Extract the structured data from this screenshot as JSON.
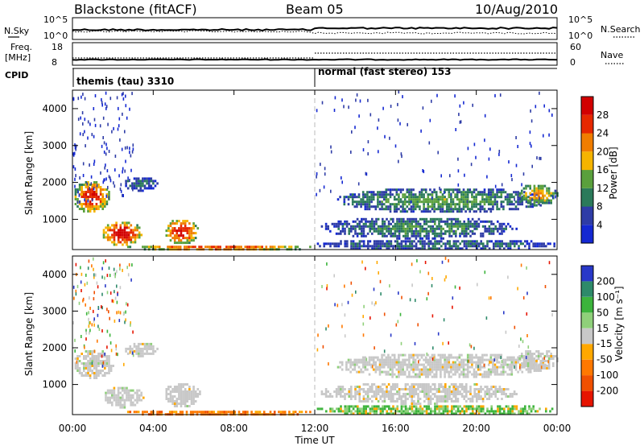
{
  "header": {
    "station": "Blackstone (fitACF)",
    "beam": "Beam 05",
    "date": "10/Aug/2010"
  },
  "top_panels": {
    "nsky_label": "N.Sky",
    "nsky_ticks": [
      "10^5",
      "10^0"
    ],
    "nsearch_label": "N.Search",
    "nsearch_ticks": [
      "10^5",
      "10^0"
    ],
    "freq_label": "Freq.",
    "freq_unit": "[MHz]",
    "freq_ticks": [
      "18",
      "8"
    ],
    "nave_label": "Nave",
    "nave_ticks": [
      "60",
      "0"
    ],
    "cpid_label": "CPID"
  },
  "cpid_modes": [
    {
      "label": "themis (tau) 3310",
      "start_hour": 0
    },
    {
      "label": "normal (fast stereo) 153",
      "start_hour": 12
    }
  ],
  "x_axis": {
    "label": "Time UT",
    "ticks": [
      "00:00",
      "04:00",
      "08:00",
      "12:00",
      "16:00",
      "20:00",
      "00:00"
    ],
    "range_hours": [
      0,
      24
    ]
  },
  "power_panel": {
    "ylabel": "Slant Range [km]",
    "yticks": [
      "1000",
      "2000",
      "3000",
      "4000"
    ],
    "ylim": [
      180,
      4500
    ],
    "colorbar_label": "Power [dB]",
    "colorbar_ticks": [
      "28",
      "24",
      "20",
      "16",
      "12",
      "8",
      "4"
    ],
    "colors": [
      "#1428d2",
      "#2e3ca6",
      "#2b7a5a",
      "#5aa03c",
      "#f5b400",
      "#f07d00",
      "#e62800",
      "#d20000"
    ]
  },
  "velocity_panel": {
    "ylabel": "Slant Range [km]",
    "yticks": [
      "1000",
      "2000",
      "3000",
      "4000"
    ],
    "ylim": [
      180,
      4500
    ],
    "colorbar_label": "Velocity [m s⁻¹]",
    "colorbar_ticks": [
      "200",
      "100",
      "50",
      "15",
      "-15",
      "-50",
      "-100",
      "-200"
    ],
    "colors": [
      "#2838c8",
      "#2e8a6a",
      "#3cb43c",
      "#8fd07a",
      "#c8c8c8",
      "#ffa800",
      "#ff7800",
      "#f05000",
      "#e61400"
    ]
  },
  "chart_data": {
    "type": "heatmap",
    "title": "Blackstone (fitACF)",
    "xlabel": "Time UT",
    "ylabel": "Slant Range [km]",
    "xlim_hours": [
      0,
      24
    ],
    "ylim_km": [
      180,
      4500
    ],
    "power_features": [
      {
        "t0": 0.0,
        "t1": 1.8,
        "r0": 1200,
        "r1": 2100,
        "level": 0.75
      },
      {
        "t0": 2.5,
        "t1": 4.2,
        "r0": 1800,
        "r1": 2200,
        "level": 0.25
      },
      {
        "t0": 1.4,
        "t1": 3.4,
        "r0": 300,
        "r1": 1000,
        "level": 0.85
      },
      {
        "t0": 4.5,
        "t1": 6.2,
        "r0": 350,
        "r1": 1050,
        "level": 0.8
      },
      {
        "t0": 2.5,
        "t1": 12.0,
        "r0": 180,
        "r1": 350,
        "level": 0.7
      },
      {
        "t0": 12.2,
        "t1": 22.0,
        "r0": 500,
        "r1": 1100,
        "level": 0.3
      },
      {
        "t0": 13.0,
        "t1": 23.5,
        "r0": 1200,
        "r1": 1900,
        "level": 0.35
      },
      {
        "t0": 12.0,
        "t1": 24.0,
        "r0": 180,
        "r1": 500,
        "level": 0.25
      },
      {
        "t0": 22.0,
        "t1": 24.0,
        "r0": 1400,
        "r1": 2000,
        "level": 0.55
      }
    ],
    "velocity_features": [
      {
        "t0": 0.0,
        "t1": 2.0,
        "r0": 1200,
        "r1": 2000,
        "class": "ground"
      },
      {
        "t0": 2.5,
        "t1": 4.2,
        "r0": 1800,
        "r1": 2200,
        "class": "ground"
      },
      {
        "t0": 1.5,
        "t1": 3.5,
        "r0": 400,
        "r1": 1000,
        "class": "ground"
      },
      {
        "t0": 4.5,
        "t1": 6.3,
        "r0": 400,
        "r1": 1100,
        "class": "ground"
      },
      {
        "t0": 2.5,
        "t1": 12.0,
        "r0": 180,
        "r1": 350,
        "class": "negative"
      },
      {
        "t0": 12.2,
        "t1": 22.0,
        "r0": 500,
        "r1": 1100,
        "class": "ground"
      },
      {
        "t0": 13.0,
        "t1": 23.5,
        "r0": 1200,
        "r1": 1900,
        "class": "ground"
      },
      {
        "t0": 12.0,
        "t1": 24.0,
        "r0": 180,
        "r1": 500,
        "class": "positive"
      },
      {
        "t0": 22.0,
        "t1": 24.0,
        "r0": 1400,
        "r1": 2000,
        "class": "ground"
      }
    ]
  }
}
